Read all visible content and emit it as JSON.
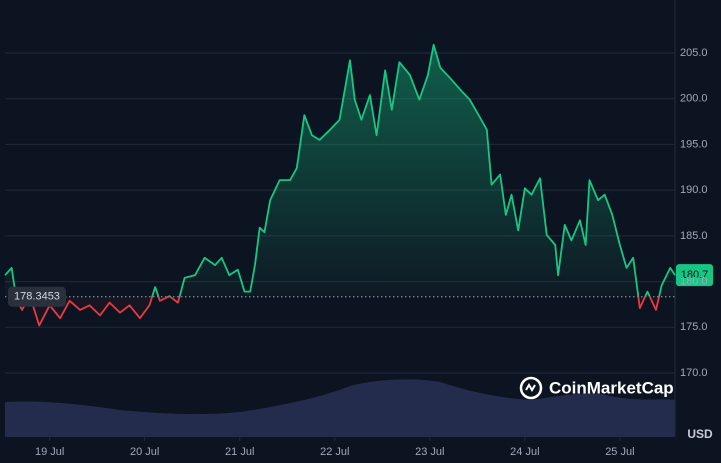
{
  "chart_data": {
    "type": "line",
    "currency_label": "USD",
    "watermark": "CoinMarketCap",
    "baseline": {
      "value": 178.3453,
      "label": "178.3453"
    },
    "current": {
      "value": 180.7,
      "label": "180.7"
    },
    "up_color": "#16c784",
    "down_color": "#ea3943",
    "x": [
      -0.47,
      -0.4,
      -0.35,
      -0.29,
      -0.21,
      -0.11,
      0,
      0.11,
      0.21,
      0.32,
      0.42,
      0.53,
      0.63,
      0.74,
      0.84,
      0.95,
      1.05,
      1.11,
      1.16,
      1.26,
      1.35,
      1.42,
      1.53,
      1.63,
      1.74,
      1.81,
      1.89,
      1.98,
      2.05,
      2.11,
      2.16,
      2.21,
      2.26,
      2.32,
      2.42,
      2.53,
      2.6,
      2.68,
      2.76,
      2.84,
      2.95,
      3.05,
      3.16,
      3.21,
      3.28,
      3.37,
      3.44,
      3.53,
      3.6,
      3.68,
      3.79,
      3.89,
      3.98,
      4.04,
      4.11,
      4.21,
      4.32,
      4.42,
      4.53,
      4.6,
      4.65,
      4.74,
      4.8,
      4.86,
      4.93,
      5.0,
      5.07,
      5.16,
      5.23,
      5.32,
      5.35,
      5.42,
      5.49,
      5.58,
      5.64,
      5.68,
      5.77,
      5.84,
      5.92,
      6.0,
      6.07,
      6.14,
      6.21,
      6.29,
      6.38,
      6.44,
      6.53,
      6.58
    ],
    "values": [
      180.7,
      181.5,
      178,
      176.9,
      178.5,
      175.2,
      177.4,
      176,
      177.9,
      176.9,
      177.4,
      176.3,
      177.7,
      176.6,
      177.4,
      176,
      177.4,
      179.4,
      177.9,
      178.4,
      177.7,
      180.4,
      180.7,
      182.6,
      181.8,
      182.6,
      180.7,
      181.3,
      178.9,
      178.9,
      181.8,
      185.9,
      185.4,
      188.9,
      191.1,
      191.1,
      192.4,
      198.2,
      196,
      195.5,
      196.6,
      197.7,
      204.2,
      199.9,
      197.7,
      200.4,
      196,
      203.1,
      198.8,
      204,
      202.6,
      199.9,
      202.6,
      205.9,
      203.4,
      202.3,
      201,
      199.9,
      197.9,
      196.6,
      190.6,
      191.7,
      187.3,
      189.5,
      185.6,
      190.2,
      189.5,
      191.3,
      185.1,
      184,
      180.7,
      186.2,
      184.5,
      186.7,
      184,
      191.1,
      188.9,
      189.5,
      187.3,
      184,
      181.5,
      182.6,
      177.1,
      178.9,
      176.9,
      179.6,
      181.5,
      180.7
    ],
    "xlim": [
      -0.47,
      6.58
    ],
    "ylim": [
      163,
      210.25
    ],
    "xticks": [
      {
        "value": 0,
        "label": "19 Jul"
      },
      {
        "value": 1,
        "label": "20 Jul"
      },
      {
        "value": 2,
        "label": "21 Jul"
      },
      {
        "value": 3,
        "label": "22 Jul"
      },
      {
        "value": 4,
        "label": "23 Jul"
      },
      {
        "value": 5,
        "label": "24 Jul"
      },
      {
        "value": 6,
        "label": "25 Jul"
      }
    ],
    "yticks": [
      {
        "value": 170,
        "label": "170.0"
      },
      {
        "value": 175,
        "label": "175.0"
      },
      {
        "value": 180,
        "label": "180.0"
      },
      {
        "value": 185,
        "label": "185.0"
      },
      {
        "value": 190,
        "label": "190.0"
      },
      {
        "value": 195,
        "label": "195.0"
      },
      {
        "value": 200,
        "label": "200.0"
      },
      {
        "value": 205,
        "label": "205.0"
      }
    ],
    "grid": true
  }
}
